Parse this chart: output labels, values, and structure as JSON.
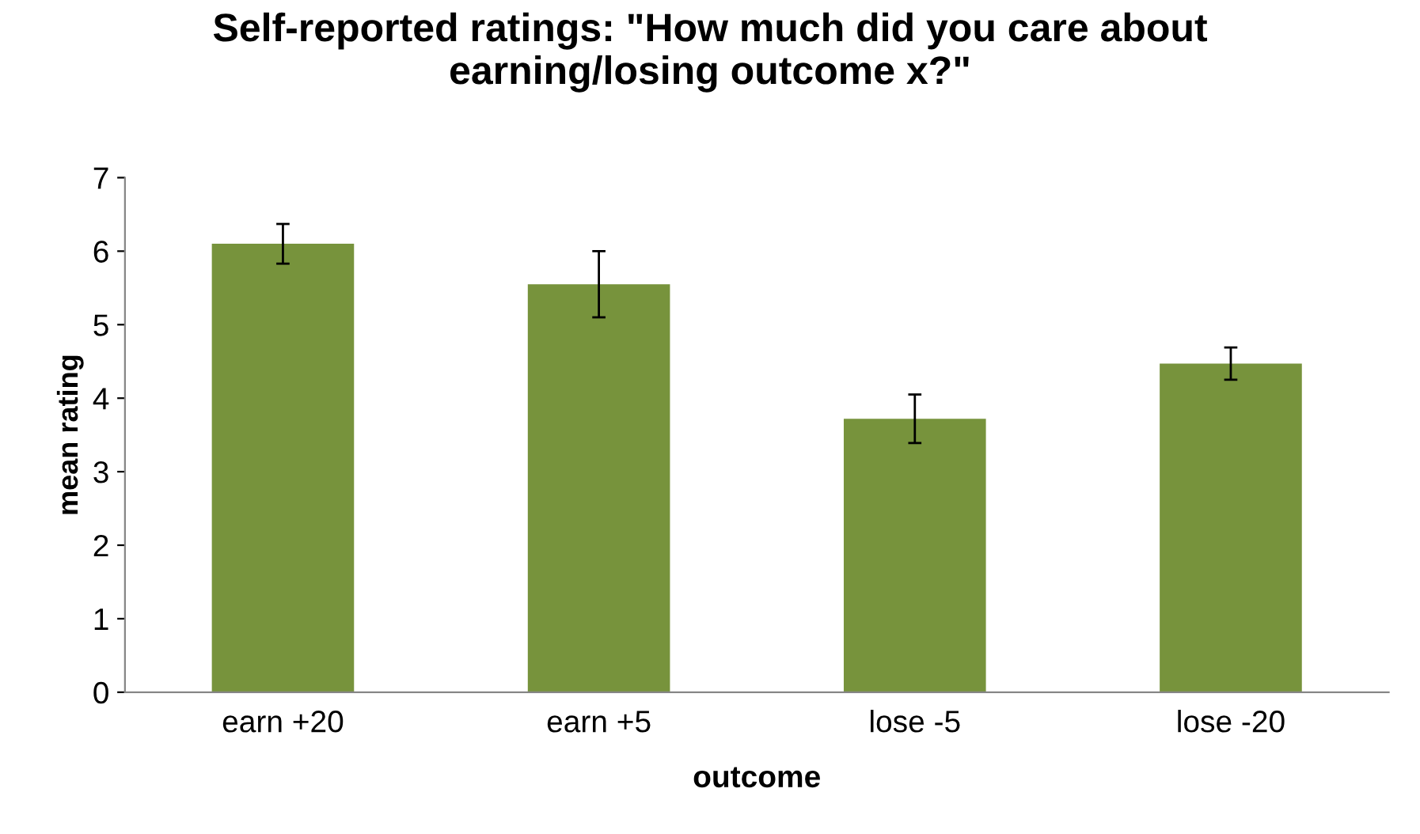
{
  "chart_data": {
    "type": "bar",
    "title": "Self-reported ratings: \"How much did you care about\nearning/losing outcome x?\"",
    "xlabel": "outcome",
    "ylabel": "mean rating",
    "categories": [
      "earn +20",
      "earn +5",
      "lose -5",
      "lose -20"
    ],
    "values": [
      6.1,
      5.55,
      3.72,
      4.47
    ],
    "errors": [
      0.27,
      0.45,
      0.33,
      0.22
    ],
    "color": "#77933c",
    "ylim": [
      0,
      7
    ],
    "yticks": [
      0,
      1,
      2,
      3,
      4,
      5,
      6,
      7
    ],
    "grid": false
  }
}
